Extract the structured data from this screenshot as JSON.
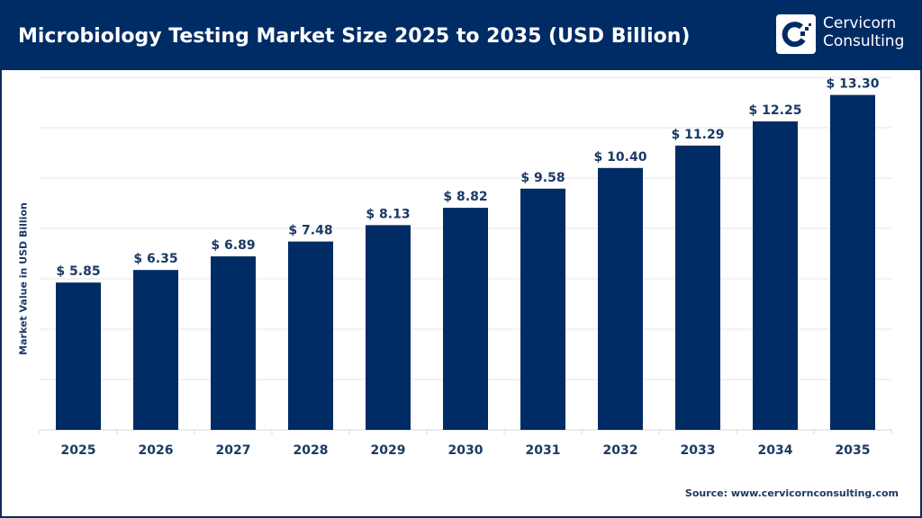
{
  "header": {
    "title": "Microbiology Testing Market Size 2025 to 2035 (USD Billion)"
  },
  "logo": {
    "line1": "Cervicorn",
    "line2": "Consulting"
  },
  "source": "Source: www.cervicornconsulting.com",
  "colors": {
    "bar": "#002c65",
    "header": "#002c65",
    "grid": "#e6e6e6"
  },
  "chart_data": {
    "type": "bar",
    "title": "Microbiology Testing Market Size 2025 to 2035 (USD Billion)",
    "xlabel": "",
    "ylabel": "Market Value in USD Billion",
    "categories": [
      "2025",
      "2026",
      "2027",
      "2028",
      "2029",
      "2030",
      "2031",
      "2032",
      "2033",
      "2034",
      "2035"
    ],
    "values": [
      5.85,
      6.35,
      6.89,
      7.48,
      8.13,
      8.82,
      9.58,
      10.4,
      11.29,
      12.25,
      13.3
    ],
    "data_labels": [
      "$ 5.85",
      "$ 6.35",
      "$ 6.89",
      "$ 7.48",
      "$ 8.13",
      "$ 8.82",
      "$ 9.58",
      "$ 10.40",
      "$ 11.29",
      "$ 12.25",
      "$ 13.30"
    ],
    "ylim": [
      0,
      14
    ],
    "grid": true,
    "y_tick_labels_shown": false
  }
}
